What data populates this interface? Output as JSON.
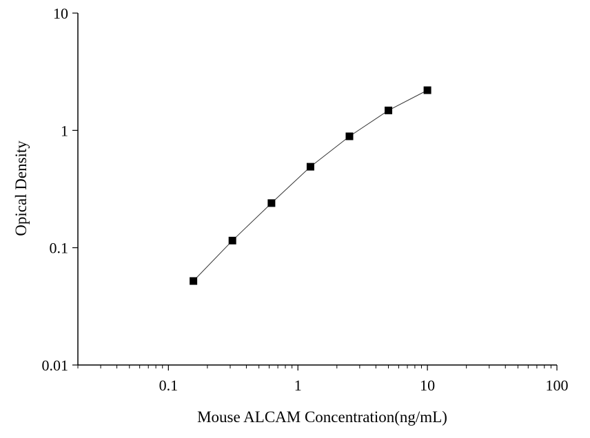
{
  "chart_data": {
    "type": "scatter",
    "xlabel": "Mouse ALCAM Concentration(ng/mL)",
    "ylabel": "Opical Density",
    "x_scale": "log",
    "y_scale": "log",
    "xlim": [
      0.02,
      100
    ],
    "ylim": [
      0.01,
      10
    ],
    "x_tick_labels": [
      "0.1",
      "1",
      "10",
      "100"
    ],
    "y_tick_labels": [
      "0.01",
      "0.1",
      "1",
      "10"
    ],
    "grid": false,
    "marker": "square",
    "line": "connected",
    "color": "#000000",
    "series": [
      {
        "x": [
          0.156,
          0.312,
          0.625,
          1.25,
          2.5,
          5,
          10
        ],
        "y": [
          0.052,
          0.115,
          0.24,
          0.49,
          0.89,
          1.48,
          2.2
        ]
      }
    ]
  }
}
